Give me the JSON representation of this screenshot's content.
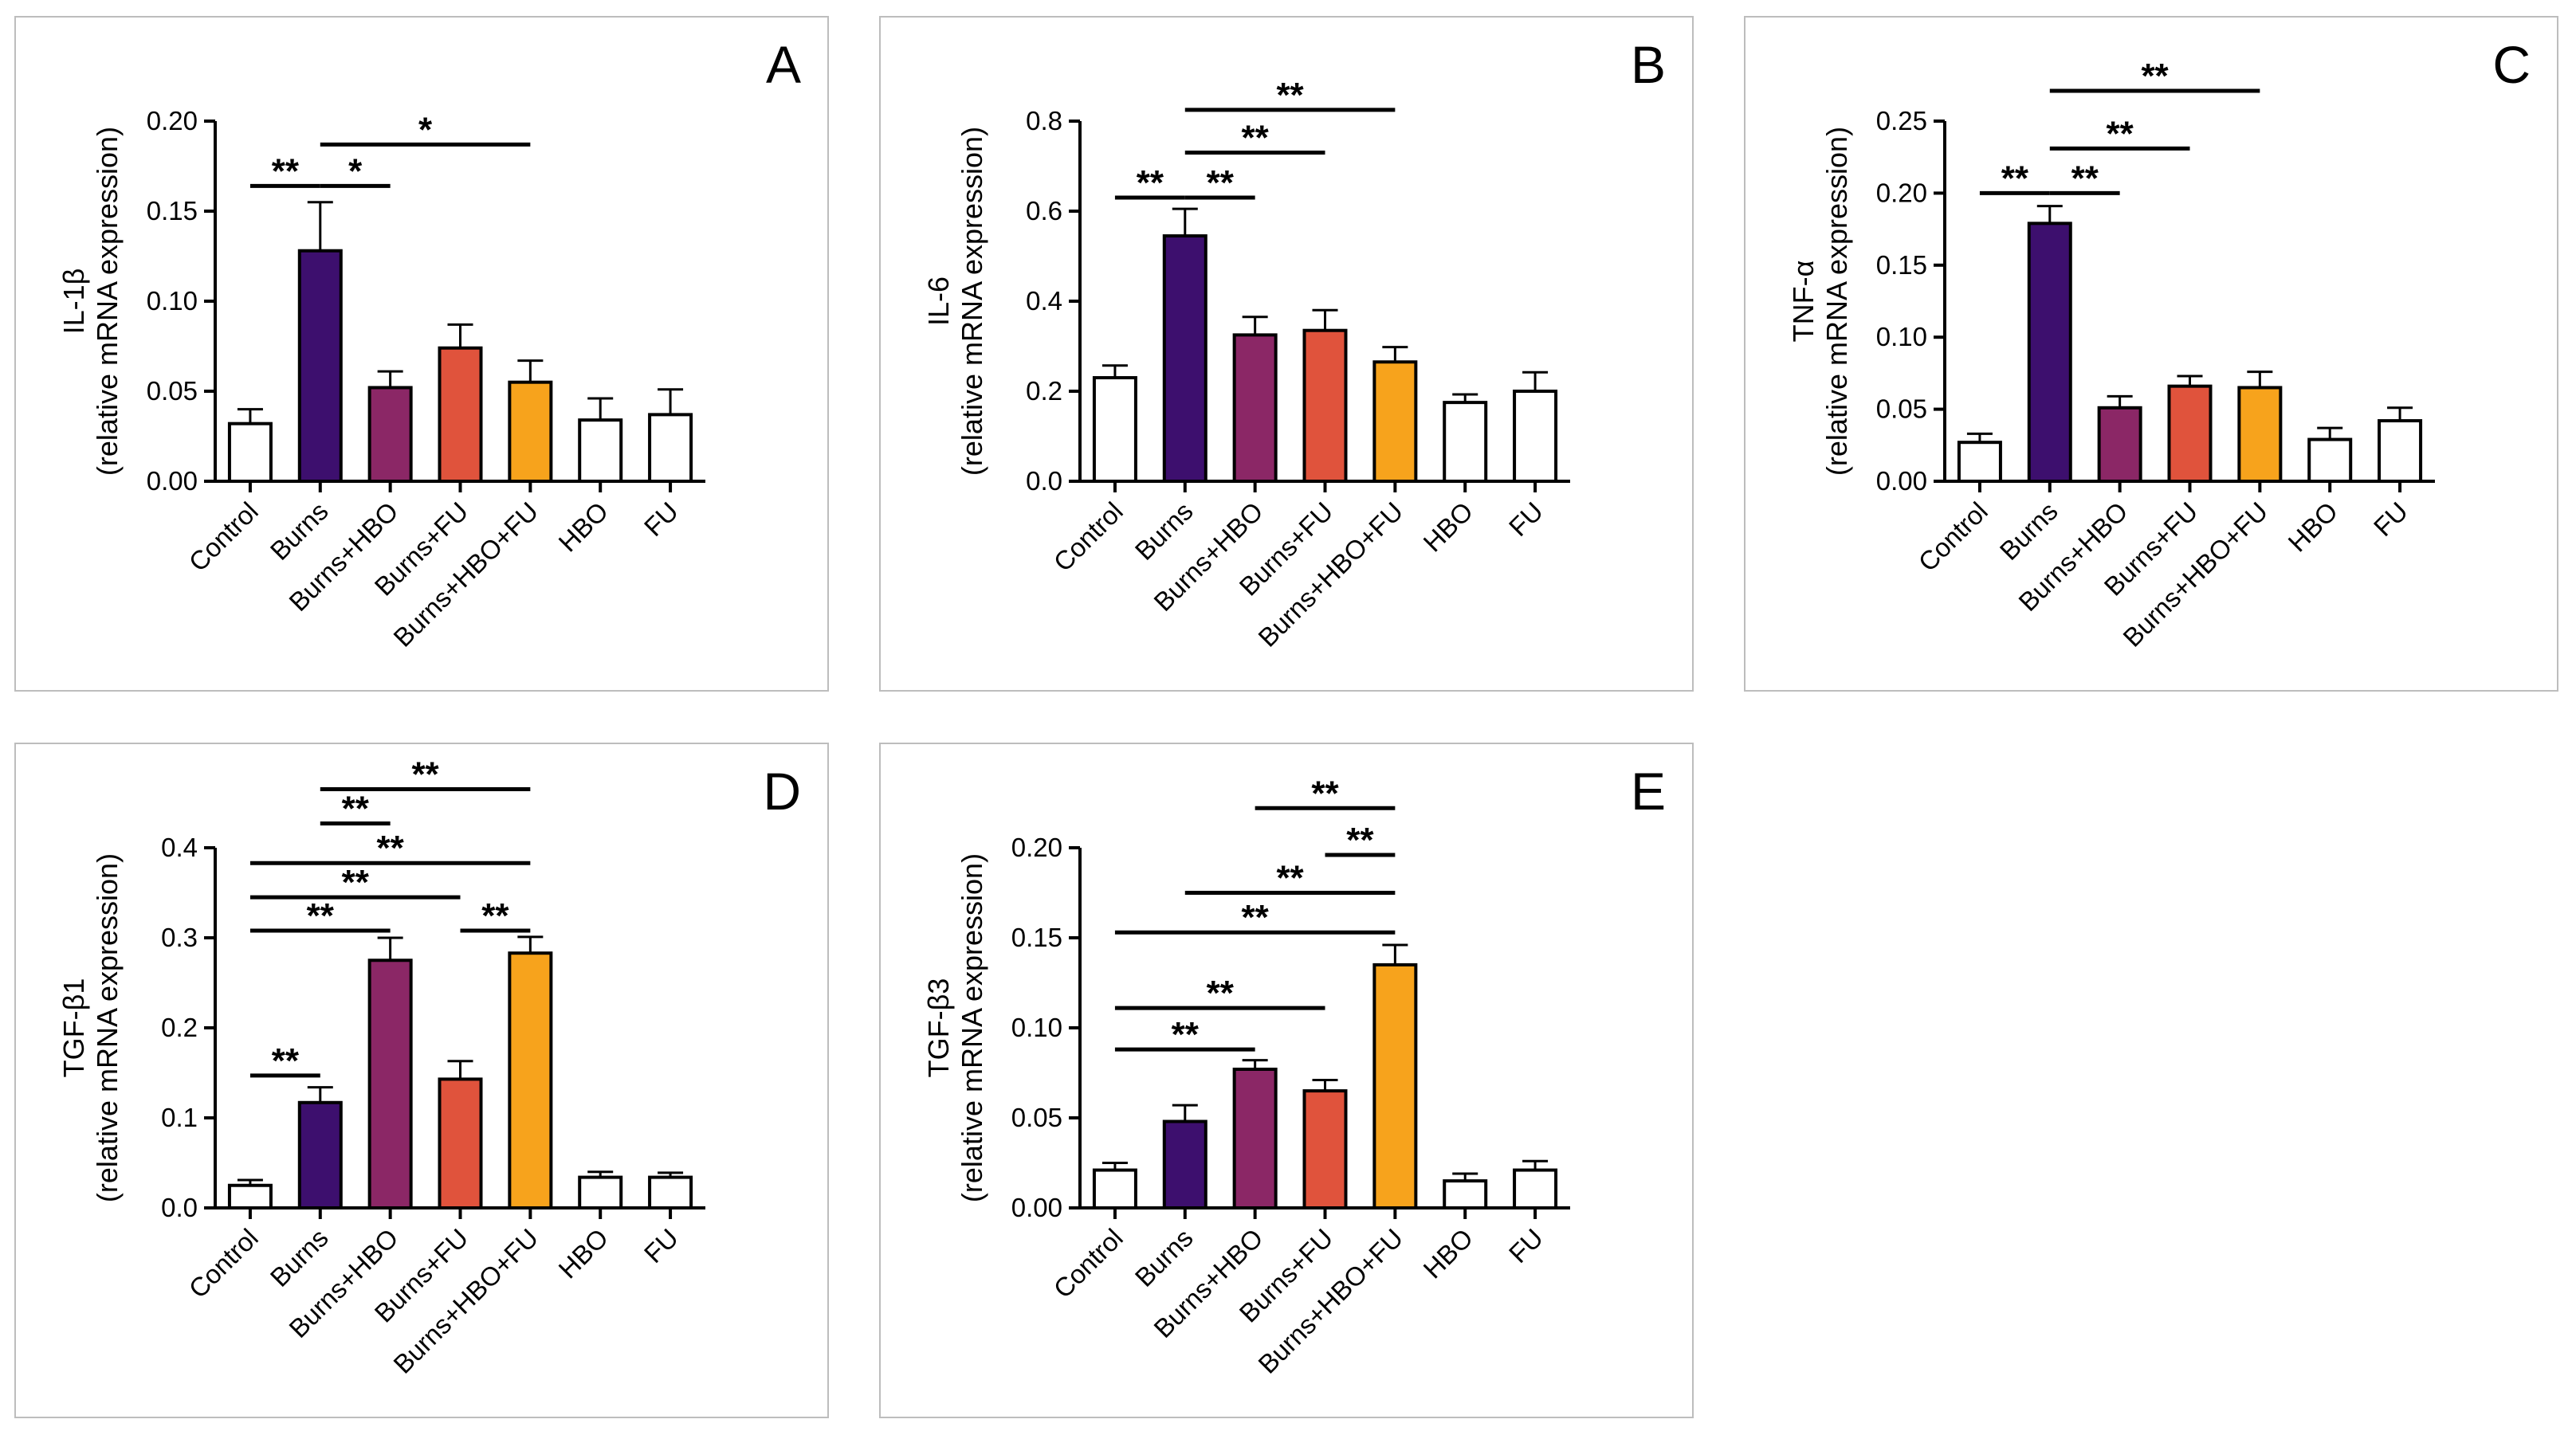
{
  "chart_data": [
    {
      "panel": "A",
      "type": "bar",
      "categories": [
        "Control",
        "Burns",
        "Burns+HBO",
        "Burns+FU",
        "Burns+HBO+FU",
        "HBO",
        "FU"
      ],
      "values": [
        0.032,
        0.128,
        0.052,
        0.074,
        0.055,
        0.034,
        0.037
      ],
      "errors": [
        0.008,
        0.027,
        0.009,
        0.013,
        0.012,
        0.012,
        0.014
      ],
      "colors": [
        "#ffffff",
        "#3d0f6e",
        "#8b2766",
        "#e0533c",
        "#f7a31c",
        "#ffffff",
        "#ffffff"
      ],
      "ylabel": [
        "IL-1β",
        "(relative mRNA expression)"
      ],
      "ylim": [
        0,
        0.2
      ],
      "yticks": [
        0.0,
        0.05,
        0.1,
        0.15,
        0.2
      ],
      "ytick_labels": [
        "0.00",
        "0.05",
        "0.10",
        "0.15",
        "0.20"
      ],
      "significance": [
        {
          "from": 0,
          "to": 1,
          "y": 0.164,
          "label": "**"
        },
        {
          "from": 1,
          "to": 2,
          "y": 0.164,
          "label": "*"
        },
        {
          "from": 1,
          "to": 4,
          "y": 0.187,
          "label": "*"
        }
      ]
    },
    {
      "panel": "B",
      "type": "bar",
      "categories": [
        "Control",
        "Burns",
        "Burns+HBO",
        "Burns+FU",
        "Burns+HBO+FU",
        "HBO",
        "FU"
      ],
      "values": [
        0.23,
        0.545,
        0.325,
        0.335,
        0.265,
        0.175,
        0.2
      ],
      "errors": [
        0.027,
        0.06,
        0.04,
        0.045,
        0.033,
        0.018,
        0.042
      ],
      "colors": [
        "#ffffff",
        "#3d0f6e",
        "#8b2766",
        "#e0533c",
        "#f7a31c",
        "#ffffff",
        "#ffffff"
      ],
      "ylabel": [
        "IL-6",
        "(relative mRNA expression)"
      ],
      "ylim": [
        0,
        0.8
      ],
      "yticks": [
        0.0,
        0.2,
        0.4,
        0.6,
        0.8
      ],
      "ytick_labels": [
        "0.0",
        "0.2",
        "0.4",
        "0.6",
        "0.8"
      ],
      "significance": [
        {
          "from": 0,
          "to": 1,
          "y": 0.63,
          "label": "**"
        },
        {
          "from": 1,
          "to": 2,
          "y": 0.63,
          "label": "**"
        },
        {
          "from": 1,
          "to": 3,
          "y": 0.73,
          "label": "**"
        },
        {
          "from": 1,
          "to": 4,
          "y": 0.825,
          "label": "**"
        }
      ]
    },
    {
      "panel": "C",
      "type": "bar",
      "categories": [
        "Control",
        "Burns",
        "Burns+HBO",
        "Burns+FU",
        "Burns+HBO+FU",
        "HBO",
        "FU"
      ],
      "values": [
        0.027,
        0.179,
        0.051,
        0.066,
        0.065,
        0.029,
        0.042
      ],
      "errors": [
        0.006,
        0.012,
        0.008,
        0.007,
        0.011,
        0.008,
        0.009
      ],
      "colors": [
        "#ffffff",
        "#3d0f6e",
        "#8b2766",
        "#e0533c",
        "#f7a31c",
        "#ffffff",
        "#ffffff"
      ],
      "ylabel": [
        "TNF-α",
        "(relative mRNA expression)"
      ],
      "ylim": [
        0,
        0.25
      ],
      "yticks": [
        0.0,
        0.05,
        0.1,
        0.15,
        0.2,
        0.25
      ],
      "ytick_labels": [
        "0.00",
        "0.05",
        "0.10",
        "0.15",
        "0.20",
        "0.25"
      ],
      "significance": [
        {
          "from": 0,
          "to": 1,
          "y": 0.2,
          "label": "**"
        },
        {
          "from": 1,
          "to": 2,
          "y": 0.2,
          "label": "**"
        },
        {
          "from": 1,
          "to": 3,
          "y": 0.231,
          "label": "**"
        },
        {
          "from": 1,
          "to": 4,
          "y": 0.271,
          "label": "**"
        }
      ]
    },
    {
      "panel": "D",
      "type": "bar",
      "categories": [
        "Control",
        "Burns",
        "Burns+HBO",
        "Burns+FU",
        "Burns+HBO+FU",
        "HBO",
        "FU"
      ],
      "values": [
        0.025,
        0.117,
        0.275,
        0.143,
        0.283,
        0.034,
        0.034
      ],
      "errors": [
        0.006,
        0.017,
        0.025,
        0.02,
        0.018,
        0.006,
        0.005
      ],
      "colors": [
        "#ffffff",
        "#3d0f6e",
        "#8b2766",
        "#e0533c",
        "#f7a31c",
        "#ffffff",
        "#ffffff"
      ],
      "ylabel": [
        "TGF-β1",
        "(relative mRNA expression)"
      ],
      "ylim": [
        0,
        0.4
      ],
      "yticks": [
        0.0,
        0.1,
        0.2,
        0.3,
        0.4
      ],
      "ytick_labels": [
        "0.0",
        "0.1",
        "0.2",
        "0.3",
        "0.4"
      ],
      "significance": [
        {
          "from": 0,
          "to": 1,
          "y": 0.147,
          "label": "**"
        },
        {
          "from": 0,
          "to": 2,
          "y": 0.308,
          "label": "**"
        },
        {
          "from": 3,
          "to": 4,
          "y": 0.308,
          "label": "**"
        },
        {
          "from": 0,
          "to": 3,
          "y": 0.345,
          "label": "**"
        },
        {
          "from": 0,
          "to": 4,
          "y": 0.383,
          "label": "**"
        },
        {
          "from": 1,
          "to": 2,
          "y": 0.427,
          "label": "**"
        },
        {
          "from": 1,
          "to": 4,
          "y": 0.465,
          "label": "**"
        }
      ]
    },
    {
      "panel": "E",
      "type": "bar",
      "categories": [
        "Control",
        "Burns",
        "Burns+HBO",
        "Burns+FU",
        "Burns+HBO+FU",
        "HBO",
        "FU"
      ],
      "values": [
        0.021,
        0.048,
        0.077,
        0.065,
        0.135,
        0.015,
        0.021
      ],
      "errors": [
        0.004,
        0.009,
        0.005,
        0.006,
        0.011,
        0.004,
        0.005
      ],
      "colors": [
        "#ffffff",
        "#3d0f6e",
        "#8b2766",
        "#e0533c",
        "#f7a31c",
        "#ffffff",
        "#ffffff"
      ],
      "ylabel": [
        "TGF-β3",
        "(relative mRNA expression)"
      ],
      "ylim": [
        0,
        0.2
      ],
      "yticks": [
        0.0,
        0.05,
        0.1,
        0.15,
        0.2
      ],
      "ytick_labels": [
        "0.00",
        "0.05",
        "0.10",
        "0.15",
        "0.20"
      ],
      "significance": [
        {
          "from": 0,
          "to": 2,
          "y": 0.088,
          "label": "**"
        },
        {
          "from": 0,
          "to": 3,
          "y": 0.111,
          "label": "**"
        },
        {
          "from": 0,
          "to": 4,
          "y": 0.153,
          "label": "**"
        },
        {
          "from": 1,
          "to": 4,
          "y": 0.175,
          "label": "**"
        },
        {
          "from": 3,
          "to": 4,
          "y": 0.196,
          "label": "**"
        },
        {
          "from": 2,
          "to": 4,
          "y": 0.222,
          "label": "**"
        }
      ]
    }
  ]
}
